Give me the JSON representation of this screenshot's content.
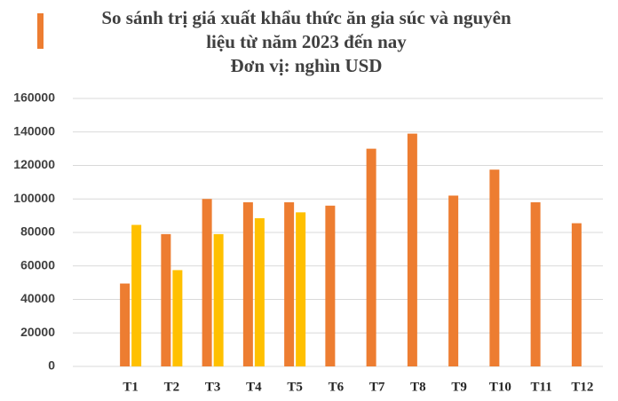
{
  "chart_data": {
    "type": "bar",
    "title": [
      "So sánh trị giá xuất khẩu thức ăn gia súc và nguyên",
      "liệu từ năm 2023 đến nay",
      "Đơn vị: nghìn USD"
    ],
    "categories": [
      "T1",
      "T2",
      "T3",
      "T4",
      "T5",
      "T6",
      "T7",
      "T8",
      "T9",
      "T10",
      "T11",
      "T12"
    ],
    "series": [
      {
        "color": "#ed7d31",
        "values": [
          49500,
          79000,
          100000,
          98000,
          98000,
          96000,
          130000,
          139000,
          102000,
          117500,
          98000,
          85500
        ]
      },
      {
        "color": "#ffc000",
        "values": [
          84500,
          57500,
          79000,
          88500,
          92000,
          null,
          null,
          null,
          null,
          null,
          null,
          null
        ]
      }
    ],
    "ylim": [
      0,
      160000
    ],
    "yticks": [
      0,
      20000,
      40000,
      60000,
      80000,
      100000,
      120000,
      140000,
      160000
    ],
    "grid": true
  }
}
